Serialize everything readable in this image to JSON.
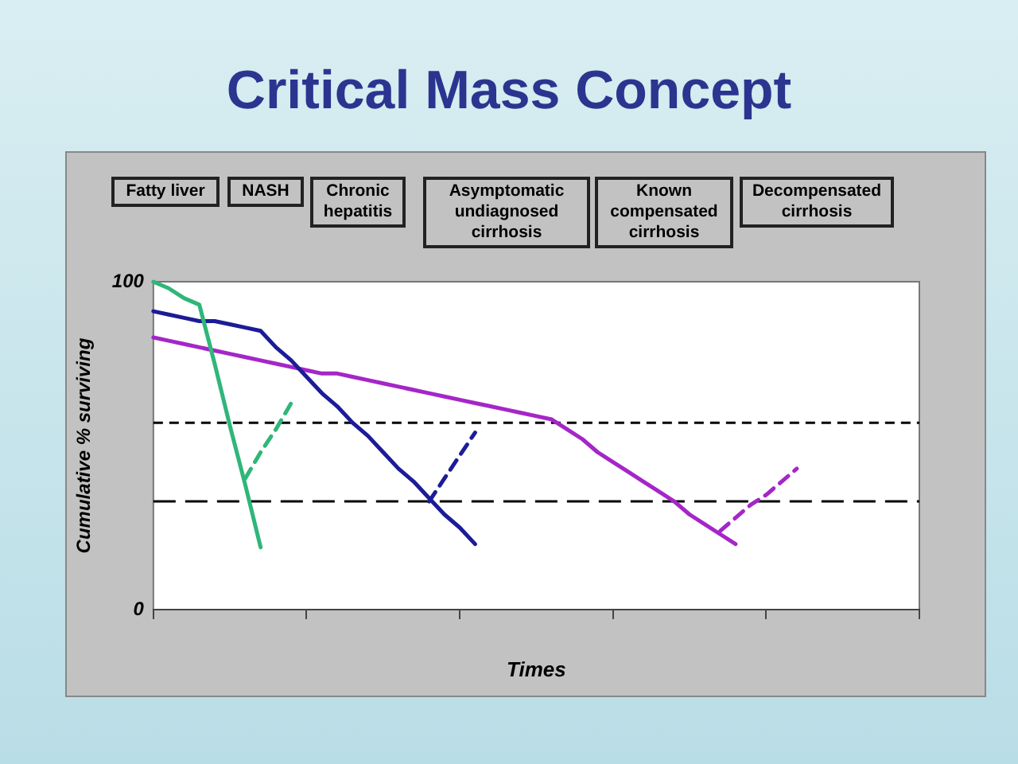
{
  "chart_data": {
    "type": "line",
    "title": "Critical Mass Concept",
    "xlabel": "Times",
    "ylabel": "Cumulative % surviving",
    "annotations": [
      "Fatty liver",
      "NASH",
      "Chronic hepatitis",
      "Asymptomatic undiagnosed cirrhosis",
      "Known compensated cirrhosis",
      "Decompensated cirrhosis"
    ],
    "categories": [
      null,
      null,
      null,
      null,
      null,
      null,
      null,
      null,
      null,
      null,
      null,
      null,
      null,
      null,
      null,
      null,
      null,
      null,
      null,
      null,
      null,
      null,
      null,
      null,
      null,
      null,
      null,
      null,
      null,
      null,
      null,
      null,
      null,
      null,
      null,
      null,
      null,
      null,
      null,
      null,
      null,
      null,
      null,
      null,
      null,
      null,
      null,
      null,
      null,
      null,
      null
    ],
    "ylim": [
      0,
      100
    ],
    "yticks": [
      0,
      100
    ],
    "grid": false,
    "legend": false,
    "marker": "none",
    "series": [
      {
        "color": "#2fb679",
        "line_style": "solid",
        "values": [
          100,
          98,
          95,
          93,
          75,
          56,
          38,
          19,
          null,
          null,
          null,
          null,
          null,
          null,
          null,
          null,
          null,
          null,
          null,
          null,
          null,
          null,
          null,
          null,
          null,
          null,
          null,
          null,
          null,
          null,
          null,
          null,
          null,
          null,
          null,
          null,
          null,
          null,
          null,
          null,
          null,
          null,
          null,
          null,
          null,
          null,
          null,
          null,
          null,
          null,
          null
        ]
      },
      {
        "color": "#2fb679",
        "line_style": "dashed",
        "values": [
          null,
          null,
          null,
          null,
          null,
          null,
          40,
          48,
          55,
          63,
          null,
          null,
          null,
          null,
          null,
          null,
          null,
          null,
          null,
          null,
          null,
          null,
          null,
          null,
          null,
          null,
          null,
          null,
          null,
          null,
          null,
          null,
          null,
          null,
          null,
          null,
          null,
          null,
          null,
          null,
          null,
          null,
          null,
          null,
          null,
          null,
          null,
          null,
          null,
          null,
          null
        ]
      },
      {
        "color": "#1c1c98",
        "line_style": "solid",
        "values": [
          91,
          90,
          89,
          88,
          88,
          87,
          86,
          85,
          80,
          76,
          71,
          66,
          62,
          57,
          53,
          48,
          43,
          39,
          34,
          29,
          25,
          20,
          null,
          null,
          null,
          null,
          null,
          null,
          null,
          null,
          null,
          null,
          null,
          null,
          null,
          null,
          null,
          null,
          null,
          null,
          null,
          null,
          null,
          null,
          null,
          null,
          null,
          null,
          null,
          null,
          null
        ]
      },
      {
        "color": "#1c1c98",
        "line_style": "dashed",
        "values": [
          null,
          null,
          null,
          null,
          null,
          null,
          null,
          null,
          null,
          null,
          null,
          null,
          null,
          null,
          null,
          null,
          null,
          null,
          33,
          40,
          47,
          54,
          null,
          null,
          null,
          null,
          null,
          null,
          null,
          null,
          null,
          null,
          null,
          null,
          null,
          null,
          null,
          null,
          null,
          null,
          null,
          null,
          null,
          null,
          null,
          null,
          null,
          null,
          null,
          null,
          null
        ]
      },
      {
        "color": "#a526c8",
        "line_style": "solid",
        "values": [
          83,
          82,
          81,
          80,
          79,
          78,
          77,
          76,
          75,
          74,
          73,
          72,
          72,
          71,
          70,
          69,
          68,
          67,
          66,
          65,
          64,
          63,
          62,
          61,
          60,
          59,
          58,
          55,
          52,
          48,
          45,
          42,
          39,
          36,
          33,
          29,
          26,
          23,
          20,
          null,
          null,
          null,
          null,
          null,
          null,
          null,
          null,
          null,
          null,
          null,
          null
        ]
      },
      {
        "color": "#a526c8",
        "line_style": "dashed",
        "values": [
          null,
          null,
          null,
          null,
          null,
          null,
          null,
          null,
          null,
          null,
          null,
          null,
          null,
          null,
          null,
          null,
          null,
          null,
          null,
          null,
          null,
          null,
          null,
          null,
          null,
          null,
          null,
          null,
          null,
          null,
          null,
          null,
          null,
          null,
          null,
          null,
          null,
          24,
          28,
          32,
          35,
          39,
          43,
          null,
          null,
          null,
          null,
          null,
          null,
          null,
          null
        ]
      }
    ],
    "ref_lines": [
      {
        "axis": "y",
        "value": 57,
        "color": "#000000",
        "line_style": "dashed"
      },
      {
        "axis": "y",
        "value": 33,
        "color": "#000000",
        "line_style": "dashed"
      }
    ]
  }
}
